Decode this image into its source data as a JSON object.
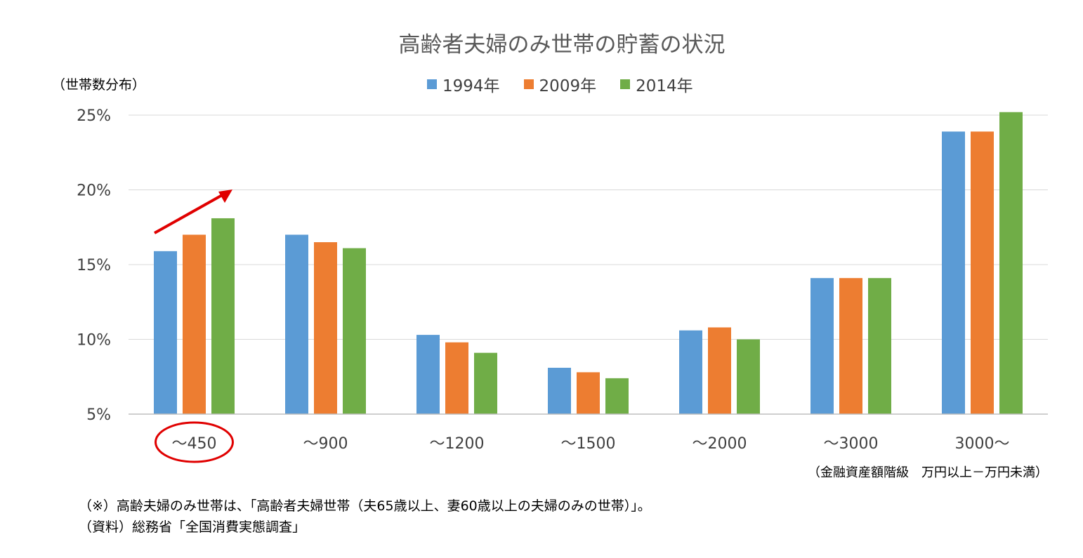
{
  "chart_data": {
    "type": "bar",
    "title": "高齢者夫婦のみ世帯の貯蓄の状況",
    "ylabel": "（世帯数分布）",
    "xlabel": "（金融資産額階級　万円以上－万円未満）",
    "categories": [
      "～450",
      "～900",
      "～1200",
      "～1500",
      "～2000",
      "～3000",
      "3000～"
    ],
    "series": [
      {
        "name": "1994年",
        "color": "#5B9BD5",
        "values": [
          15.9,
          17.0,
          10.3,
          8.1,
          10.6,
          14.1,
          23.9
        ]
      },
      {
        "name": "2009年",
        "color": "#ED7D31",
        "values": [
          17.0,
          16.5,
          9.8,
          7.8,
          10.8,
          14.1,
          23.9
        ]
      },
      {
        "name": "2014年",
        "color": "#70AD47",
        "values": [
          18.1,
          16.1,
          9.1,
          7.4,
          10.0,
          14.1,
          25.2
        ]
      }
    ],
    "ylim": [
      5,
      25
    ],
    "yticks": [
      5,
      10,
      15,
      20,
      25
    ],
    "ytick_labels": [
      "5%",
      "10%",
      "15%",
      "20%",
      "25%"
    ],
    "legend_position": "top-center",
    "grid": true,
    "annotations": {
      "highlight_category": "～450",
      "highlight_color": "#E00000",
      "arrow": "upward trend across series for ～450"
    }
  },
  "notes": {
    "line1": "（※）高齢夫婦のみ世帯は、「高齢者夫婦世帯（夫65歳以上、妻60歳以上の夫婦のみの世帯）」。",
    "line2": "（資料）総務省「全国消費実態調査」"
  }
}
